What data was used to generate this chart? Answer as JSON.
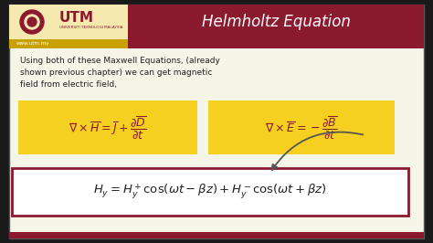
{
  "bg_color": "#fffff0",
  "header_bg": "#8B1A2E",
  "header_text": "Helmholtz Equation",
  "header_text_color": "#ffffff",
  "utm_bar_color": "#c8a000",
  "utm_text": "UTM",
  "utm_sub": "www.utm.my",
  "logo_color": "#8B1A2E",
  "body_bg": "#f5f5e8",
  "body_text_line1": "Using both of these Maxwell Equations, (already",
  "body_text_line2": "shown previous chapter) we can get magnetic",
  "body_text_line3": "field from electric field,",
  "eq_box_color": "#f5d020",
  "eq3_box_color": "#ffffff",
  "eq3_border_color": "#8B1A2E",
  "bottom_bar_color": "#8B1A2E",
  "slide_border_color": "#333333",
  "outer_bg": "#1a1a1a",
  "utm_logo_bg": "#f5e9b0"
}
